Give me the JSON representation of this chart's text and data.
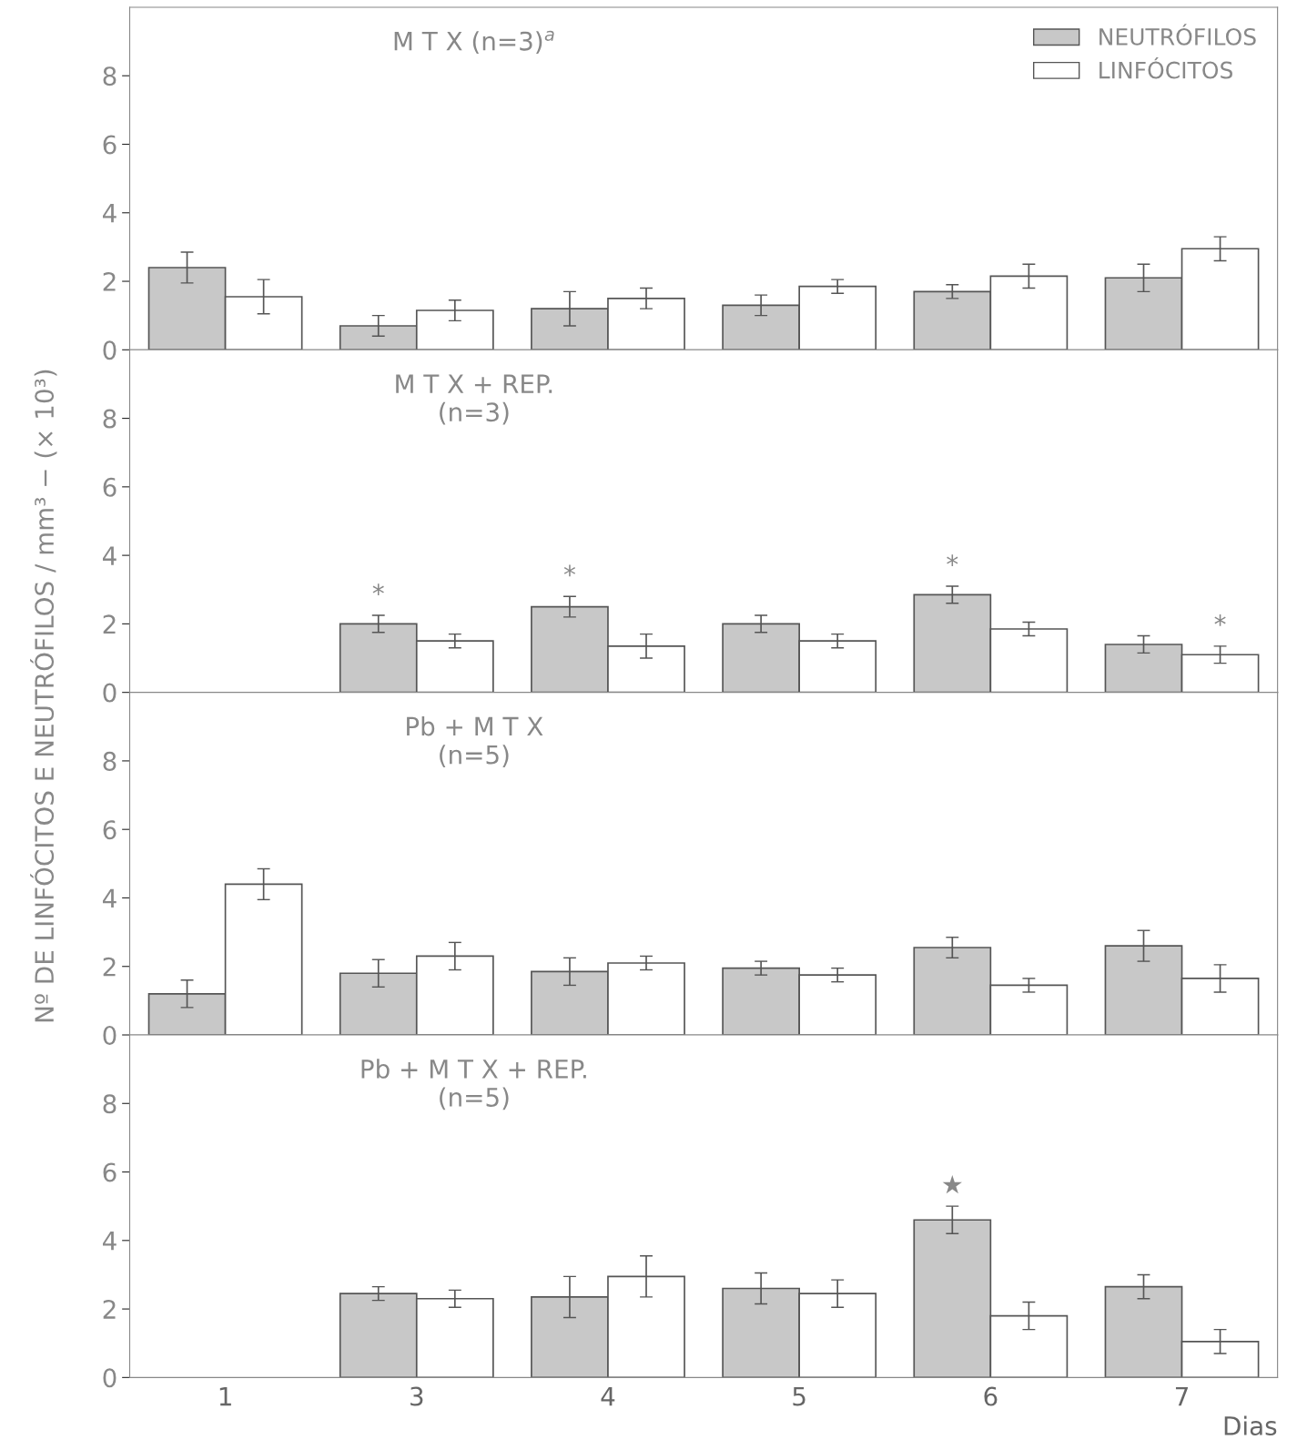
{
  "chart_data": [
    {
      "type": "bar",
      "categories": [
        "1",
        "3",
        "4",
        "5",
        "6",
        "7"
      ],
      "ylabel": "Nº DE LINFÓCITOS E NEUTRÓFILOS / mm³ − (× 10³)",
      "ylim": [
        0,
        10
      ],
      "yticks": [
        0,
        2,
        4,
        6,
        8
      ],
      "tick_labels": "y",
      "legend": "top right",
      "grid": false,
      "annotations": [
        "M T X (n=3)$^{a}$"
      ],
      "series": [
        {
          "name": "NEUTRÓFILOS",
          "color": "#c8c8c8",
          "values": [
            2.4,
            0.7,
            1.2,
            1.3,
            1.7,
            2.1
          ],
          "errors": [
            0.45,
            0.3,
            0.5,
            0.3,
            0.2,
            0.4
          ]
        },
        {
          "name": "LINFÓCITOS",
          "color": "#ffffff",
          "values": [
            1.55,
            1.15,
            1.5,
            1.85,
            2.15,
            2.95
          ],
          "errors": [
            0.5,
            0.3,
            0.3,
            0.2,
            0.35,
            0.35
          ]
        }
      ]
    },
    {
      "type": "bar",
      "categories": [
        "1",
        "3",
        "4",
        "5",
        "6",
        "7"
      ],
      "ylim": [
        0,
        10
      ],
      "yticks": [
        0,
        2,
        4,
        6,
        8
      ],
      "tick_labels": "y",
      "grid": false,
      "annotations": [
        "M T X + REP.\n(n=3)",
        {
          "text": "*",
          "x": "3",
          "y": 2.0
        },
        {
          "text": "*",
          "x": "4",
          "y": 2.5
        },
        {
          "text": "*",
          "x": "6",
          "y": 2.85
        },
        {
          "text": "*",
          "x": "7",
          "y": 1.1
        }
      ],
      "series": [
        {
          "color": "#c8c8c8",
          "values": [
            null,
            2.0,
            2.5,
            2.0,
            2.85,
            1.4
          ],
          "errors": [
            null,
            0.25,
            0.3,
            0.25,
            0.25,
            0.25
          ]
        },
        {
          "color": "#ffffff",
          "values": [
            null,
            1.5,
            1.35,
            1.5,
            1.85,
            1.1
          ],
          "errors": [
            null,
            0.2,
            0.35,
            0.2,
            0.2,
            0.25
          ]
        }
      ]
    },
    {
      "type": "bar",
      "categories": [
        "1",
        "3",
        "4",
        "5",
        "6",
        "7"
      ],
      "ylim": [
        0,
        10
      ],
      "yticks": [
        0,
        2,
        4,
        6,
        8
      ],
      "tick_labels": "y",
      "grid": false,
      "annotations": [
        "Pb + M T X\n(n=5)"
      ],
      "series": [
        {
          "color": "#c8c8c8",
          "values": [
            1.2,
            1.8,
            1.85,
            1.95,
            2.55,
            2.6
          ],
          "errors": [
            0.4,
            0.4,
            0.4,
            0.2,
            0.3,
            0.45
          ]
        },
        {
          "color": "#ffffff",
          "values": [
            4.4,
            2.3,
            2.1,
            1.75,
            1.45,
            1.65
          ],
          "errors": [
            0.45,
            0.4,
            0.2,
            0.2,
            0.2,
            0.4
          ]
        }
      ]
    },
    {
      "type": "bar",
      "categories": [
        "1",
        "3",
        "4",
        "5",
        "6",
        "7"
      ],
      "xlabel": "Dias",
      "ylim": [
        0,
        10
      ],
      "yticks": [
        0,
        2,
        4,
        6,
        8
      ],
      "grid": false,
      "annotations": [
        "Pb + M T X + REP.\n(n=5)",
        {
          "text": "★",
          "x": "6",
          "y": 4.6
        }
      ],
      "series": [
        {
          "color": "#c8c8c8",
          "values": [
            null,
            2.45,
            2.35,
            2.6,
            4.6,
            2.65
          ],
          "errors": [
            null,
            0.2,
            0.6,
            0.45,
            0.4,
            0.35
          ]
        },
        {
          "color": "#ffffff",
          "values": [
            null,
            2.3,
            2.95,
            2.45,
            1.8,
            1.05
          ],
          "errors": [
            null,
            0.25,
            0.6,
            0.4,
            0.4,
            0.35
          ]
        }
      ]
    }
  ]
}
